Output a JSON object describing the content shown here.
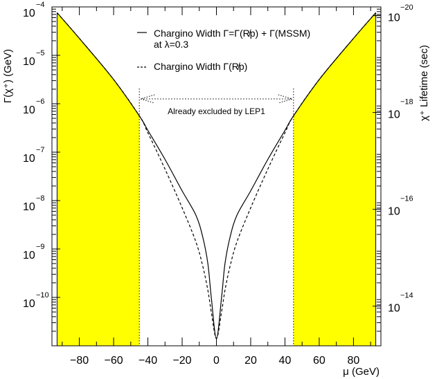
{
  "chart_data": {
    "type": "line",
    "x_axis": {
      "label": "μ (GeV)",
      "range": [
        -96,
        96
      ],
      "ticks": [
        -80,
        -60,
        -40,
        -20,
        0,
        20,
        40,
        60,
        80
      ]
    },
    "y_axis_left": {
      "label": "Γ(χ⁺) (GeV)",
      "scale": "log",
      "range": [
        1e-11,
        0.0001
      ],
      "tick_exponents": [
        -4,
        -5,
        -6,
        -7,
        -8,
        -9,
        -10
      ]
    },
    "y_axis_right": {
      "label": "χ⁺ Lifetime (sec)",
      "scale": "log",
      "ticks": [
        {
          "base": "10",
          "exponent": "-20",
          "at_width": 6.6e-05,
          "exp_only": true
        },
        {
          "base": "10",
          "exponent": "",
          "at_width": 6.6e-05
        },
        {
          "base": "10",
          "exponent": "-18",
          "at_width": 6.6e-07
        },
        {
          "base": "10",
          "exponent": "-16",
          "at_width": 6.6e-09
        },
        {
          "base": "10",
          "exponent": "-14",
          "at_width": 6.6e-11
        }
      ]
    },
    "legend": {
      "placement": "top-center",
      "entries": [
        {
          "symbol": "—",
          "style": "solid",
          "text": "Chargino Width Γ=Γ(R̸p) + Γ(MSSM)",
          "subtext": "at λ=0.3"
        },
        {
          "symbol": "---",
          "style": "dashed",
          "text": "Chargino Width Γ(R̸p)"
        }
      ]
    },
    "annotation": {
      "text": "Already excluded by LEP1",
      "x_range": [
        -45,
        45
      ]
    },
    "excluded_region_color": "#ffff00",
    "series": [
      {
        "name": "Chargino Width Γ=Γ(R̸p) + Γ(MSSM)",
        "style": "solid",
        "x": [
          -93,
          -80,
          -60,
          -45,
          -40,
          -30,
          -20,
          -12,
          -8,
          -5,
          -3,
          0,
          3,
          5,
          8,
          12,
          20,
          30,
          40,
          45,
          60,
          80,
          93
        ],
        "log10_y": [
          -4.12,
          -4.65,
          -5.5,
          -6.25,
          -6.55,
          -7.15,
          -7.8,
          -8.3,
          -8.75,
          -9.3,
          -10.0,
          -10.85,
          -10.0,
          -9.3,
          -8.75,
          -8.3,
          -7.8,
          -7.15,
          -6.55,
          -6.25,
          -5.5,
          -4.65,
          -4.12
        ]
      },
      {
        "name": "Chargino Width Γ(R̸p)",
        "style": "dashed",
        "x": [
          -93,
          -80,
          -60,
          -45,
          -40,
          -30,
          -20,
          -12,
          -8,
          -5,
          -3,
          0,
          3,
          5,
          8,
          12,
          20,
          30,
          40,
          45,
          60,
          80,
          93
        ],
        "log10_y": [
          -4.12,
          -4.65,
          -5.5,
          -6.25,
          -6.6,
          -7.35,
          -8.15,
          -8.85,
          -9.35,
          -9.85,
          -10.3,
          -10.85,
          -10.3,
          -9.85,
          -9.35,
          -8.85,
          -8.15,
          -7.35,
          -6.6,
          -6.25,
          -5.5,
          -4.65,
          -4.12
        ]
      }
    ]
  }
}
